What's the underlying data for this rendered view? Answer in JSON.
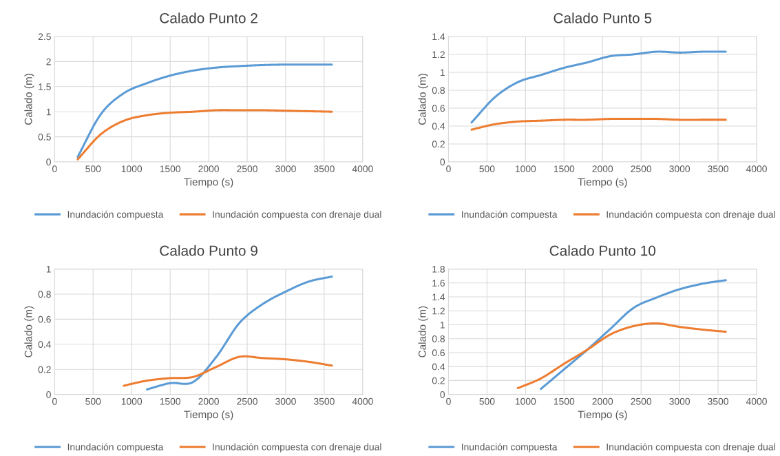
{
  "chart_data": [
    {
      "type": "line",
      "title": "Calado Punto 2",
      "xlabel": "Tiempo (s)",
      "ylabel": "Calado (m)",
      "xlim": [
        0,
        4000
      ],
      "xticks": [
        0,
        500,
        1000,
        1500,
        2000,
        2500,
        3000,
        3500,
        4000
      ],
      "ylim": [
        0,
        2.5
      ],
      "yticks": [
        0,
        0.5,
        1,
        1.5,
        2,
        2.5
      ],
      "grid": true,
      "legend": "bottom",
      "marker": "none",
      "line_style": "solid",
      "series": [
        {
          "name": "Inundación compuesta",
          "color": "#5b9bd5",
          "x": [
            300,
            600,
            900,
            1200,
            1500,
            1800,
            2100,
            2400,
            2700,
            3000,
            3300,
            3600
          ],
          "values": [
            0.1,
            0.95,
            1.37,
            1.57,
            1.72,
            1.82,
            1.88,
            1.91,
            1.93,
            1.94,
            1.94,
            1.94
          ]
        },
        {
          "name": "Inundación compuesta con drenaje dual",
          "color": "#ed7d31",
          "x": [
            300,
            600,
            900,
            1200,
            1500,
            1800,
            2100,
            2400,
            2700,
            3000,
            3300,
            3600
          ],
          "values": [
            0.05,
            0.55,
            0.82,
            0.93,
            0.98,
            1.0,
            1.03,
            1.03,
            1.03,
            1.02,
            1.01,
            1.0
          ]
        }
      ]
    },
    {
      "type": "line",
      "title": "Calado Punto 5",
      "xlabel": "Tiempo (s)",
      "ylabel": "Calado (m)",
      "xlim": [
        0,
        4000
      ],
      "xticks": [
        0,
        500,
        1000,
        1500,
        2000,
        2500,
        3000,
        3500,
        4000
      ],
      "ylim": [
        0,
        1.4
      ],
      "yticks": [
        0,
        0.2,
        0.4,
        0.6,
        0.8,
        1,
        1.2,
        1.4
      ],
      "grid": true,
      "legend": "bottom",
      "marker": "none",
      "line_style": "solid",
      "series": [
        {
          "name": "Inundación compuesta",
          "color": "#5b9bd5",
          "x": [
            300,
            600,
            900,
            1200,
            1500,
            1800,
            2100,
            2400,
            2700,
            3000,
            3300,
            3600
          ],
          "values": [
            0.44,
            0.72,
            0.89,
            0.97,
            1.05,
            1.11,
            1.18,
            1.2,
            1.23,
            1.22,
            1.23,
            1.23
          ]
        },
        {
          "name": "Inundación compuesta con drenaje dual",
          "color": "#ed7d31",
          "x": [
            300,
            600,
            900,
            1200,
            1500,
            1800,
            2100,
            2400,
            2700,
            3000,
            3300,
            3600
          ],
          "values": [
            0.36,
            0.42,
            0.45,
            0.46,
            0.47,
            0.47,
            0.48,
            0.48,
            0.48,
            0.47,
            0.47,
            0.47
          ]
        }
      ]
    },
    {
      "type": "line",
      "title": "Calado Punto 9",
      "xlabel": "Tiempo (s)",
      "ylabel": "Calado (m)",
      "xlim": [
        0,
        4000
      ],
      "xticks": [
        0,
        500,
        1000,
        1500,
        2000,
        2500,
        3000,
        3500,
        4000
      ],
      "ylim": [
        0,
        1
      ],
      "yticks": [
        0,
        0.2,
        0.4,
        0.6,
        0.8,
        1
      ],
      "grid": true,
      "legend": "bottom",
      "marker": "none",
      "line_style": "solid",
      "series": [
        {
          "name": "Inundación compuesta",
          "color": "#5b9bd5",
          "x": [
            1200,
            1500,
            1800,
            2100,
            2400,
            2700,
            3000,
            3300,
            3600
          ],
          "values": [
            0.04,
            0.09,
            0.1,
            0.3,
            0.57,
            0.72,
            0.82,
            0.9,
            0.94
          ]
        },
        {
          "name": "Inundación compuesta con drenaje dual",
          "color": "#ed7d31",
          "x": [
            900,
            1200,
            1500,
            1800,
            2100,
            2400,
            2700,
            3000,
            3300,
            3600
          ],
          "values": [
            0.07,
            0.11,
            0.13,
            0.14,
            0.22,
            0.3,
            0.29,
            0.28,
            0.26,
            0.23
          ]
        }
      ]
    },
    {
      "type": "line",
      "title": "Calado Punto 10",
      "xlabel": "Tiempo (s)",
      "ylabel": "Calado (m)",
      "xlim": [
        0,
        4000
      ],
      "xticks": [
        0,
        500,
        1000,
        1500,
        2000,
        2500,
        3000,
        3500,
        4000
      ],
      "ylim": [
        0,
        1.8
      ],
      "yticks": [
        0,
        0.2,
        0.4,
        0.6,
        0.8,
        1,
        1.2,
        1.4,
        1.6,
        1.8
      ],
      "grid": true,
      "legend": "bottom",
      "marker": "none",
      "line_style": "solid",
      "series": [
        {
          "name": "Inundación compuesta",
          "color": "#5b9bd5",
          "x": [
            1200,
            1500,
            1800,
            2100,
            2400,
            2700,
            3000,
            3300,
            3600
          ],
          "values": [
            0.08,
            0.36,
            0.64,
            0.94,
            1.24,
            1.39,
            1.51,
            1.59,
            1.64
          ]
        },
        {
          "name": "Inundación compuesta con drenaje dual",
          "color": "#ed7d31",
          "x": [
            900,
            1200,
            1500,
            1800,
            2100,
            2400,
            2700,
            3000,
            3300,
            3600
          ],
          "values": [
            0.09,
            0.23,
            0.44,
            0.64,
            0.86,
            0.98,
            1.02,
            0.97,
            0.93,
            0.9
          ]
        }
      ]
    }
  ]
}
